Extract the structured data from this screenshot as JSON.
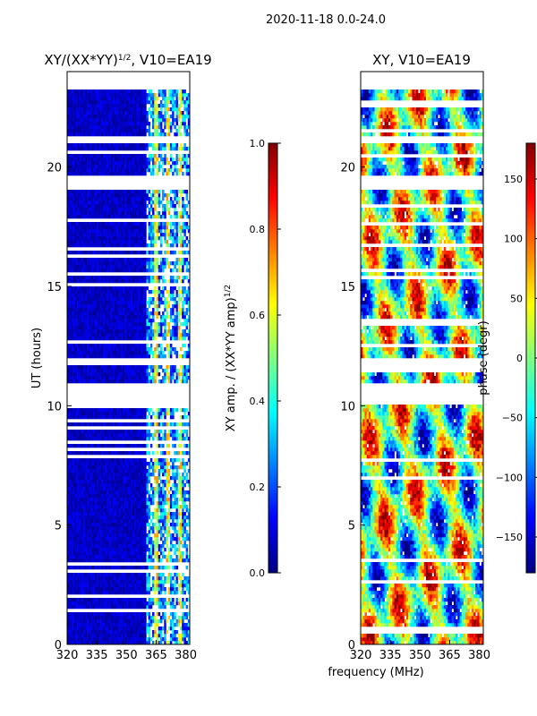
{
  "page": {
    "suptitle": "2020-11-18 0.0-24.0"
  },
  "chart_data": [
    {
      "type": "heatmap",
      "title_main": "XY/(XX*YY)",
      "title_exp": "1/2",
      "title_tail": ", V10=EA19",
      "ylabel": "UT (hours)",
      "xlabel": "",
      "xlim": [
        320,
        382
      ],
      "ylim": [
        0,
        24
      ],
      "xticks": [
        "320",
        "335",
        "350",
        "365",
        "380"
      ],
      "xtick_values": [
        320,
        335,
        350,
        365,
        380
      ],
      "yticks": [
        "0",
        "5",
        "10",
        "15",
        "20"
      ],
      "ytick_values": [
        0,
        5,
        10,
        15,
        20
      ],
      "colorbar": {
        "label_main": "XY amp. / (XX*YY amp)",
        "label_exp": "1/2",
        "min": 0.0,
        "max": 1.0,
        "ticks": [
          "0.0",
          "0.2",
          "0.4",
          "0.6",
          "0.8",
          "1.0"
        ],
        "tick_values": [
          0.0,
          0.2,
          0.4,
          0.6,
          0.8,
          1.0
        ]
      },
      "data_gaps_hours": [
        [
          10.0,
          11.0
        ],
        [
          11.7,
          12.0
        ],
        [
          19.0,
          19.7
        ],
        [
          21.0,
          21.3
        ],
        [
          23.2,
          24.0
        ]
      ],
      "dense_flag_band_mhz": [
        360,
        382
      ]
    },
    {
      "type": "heatmap",
      "title": "XY, V10=EA19",
      "ylabel": "",
      "xlabel": "frequency (MHz)",
      "xlim": [
        320,
        382
      ],
      "ylim": [
        0,
        24
      ],
      "xticks": [
        "320",
        "335",
        "350",
        "365",
        "380"
      ],
      "xtick_values": [
        320,
        335,
        350,
        365,
        380
      ],
      "yticks": [
        "0",
        "5",
        "10",
        "15",
        "20"
      ],
      "ytick_values": [
        0,
        5,
        10,
        15,
        20
      ],
      "colorbar": {
        "label": "phase (degr)",
        "min": -180,
        "max": 180,
        "ticks": [
          "−150",
          "−100",
          "−50",
          "0",
          "50",
          "100",
          "150"
        ],
        "tick_values": [
          -150,
          -100,
          -50,
          0,
          50,
          100,
          150
        ]
      },
      "data_gaps_hours": [
        [
          10.0,
          11.0
        ],
        [
          11.7,
          12.0
        ],
        [
          19.0,
          19.7
        ],
        [
          21.0,
          21.3
        ],
        [
          23.2,
          24.0
        ]
      ]
    }
  ],
  "colors": {
    "jet": [
      "#00007f",
      "#0000ff",
      "#007fff",
      "#00ffff",
      "#7fff7f",
      "#ffff00",
      "#ff7f00",
      "#ff0000",
      "#7f0000"
    ]
  }
}
